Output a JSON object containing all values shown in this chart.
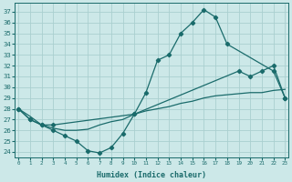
{
  "xlabel": "Humidex (Indice chaleur)",
  "ylabel_ticks": [
    24,
    25,
    26,
    27,
    28,
    29,
    30,
    31,
    32,
    33,
    34,
    35,
    36,
    37
  ],
  "xticks": [
    0,
    1,
    2,
    3,
    4,
    5,
    6,
    7,
    8,
    9,
    10,
    11,
    12,
    13,
    14,
    15,
    16,
    17,
    18,
    19,
    20,
    21,
    22,
    23
  ],
  "ylim": [
    23.5,
    37.8
  ],
  "xlim": [
    -0.3,
    23.3
  ],
  "bg_color": "#cce8e8",
  "grid_color": "#aacfcf",
  "line_color": "#1a6b6b",
  "line1_x": [
    0,
    1,
    2,
    3,
    10,
    11,
    12,
    13,
    14,
    15,
    16,
    17,
    18,
    22,
    23
  ],
  "line1_y": [
    28.0,
    27.0,
    26.5,
    26.5,
    27.5,
    29.5,
    32.5,
    33.0,
    35.0,
    36.0,
    37.2,
    36.5,
    34.0,
    31.5,
    29.0
  ],
  "line2_x": [
    0,
    1,
    2,
    3,
    4,
    5,
    6,
    7,
    8,
    9,
    10,
    19,
    20,
    21,
    22,
    23
  ],
  "line2_y": [
    28.0,
    27.0,
    26.5,
    26.0,
    25.5,
    25.0,
    24.1,
    23.9,
    24.4,
    25.7,
    27.5,
    31.5,
    31.0,
    31.5,
    32.0,
    29.0
  ],
  "line3_x": [
    0,
    1,
    2,
    3,
    4,
    5,
    6,
    7,
    8,
    9,
    10,
    11,
    12,
    13,
    14,
    15,
    16,
    17,
    18,
    19,
    20,
    21,
    22,
    23
  ],
  "line3_y": [
    28.0,
    27.3,
    26.5,
    26.2,
    26.0,
    26.0,
    26.1,
    26.5,
    26.8,
    27.0,
    27.5,
    27.8,
    28.0,
    28.2,
    28.5,
    28.7,
    29.0,
    29.2,
    29.3,
    29.4,
    29.5,
    29.5,
    29.7,
    29.8
  ]
}
